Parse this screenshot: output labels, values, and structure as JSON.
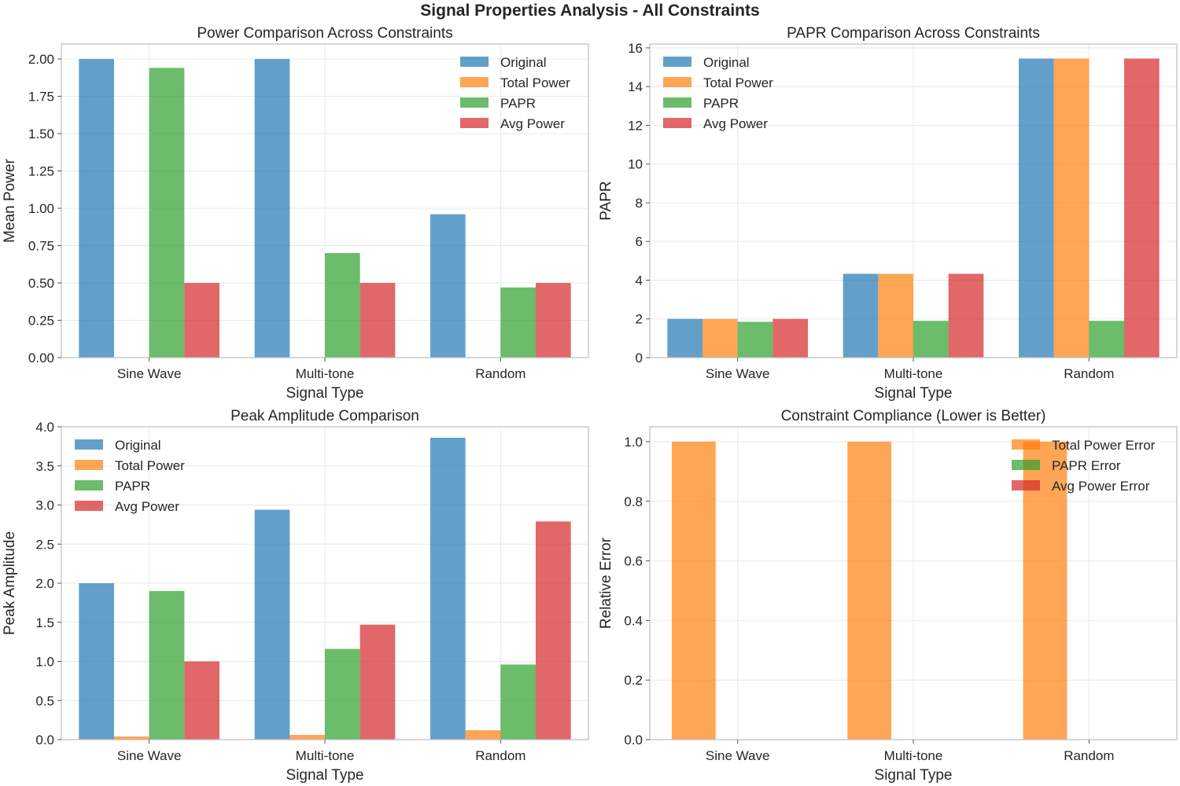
{
  "figure": {
    "suptitle": "Signal Properties Analysis - All Constraints"
  },
  "colors": {
    "Original": "#1f77b4",
    "Total Power": "#ff7f0e",
    "PAPR": "#2ca02c",
    "Avg Power": "#d62728"
  },
  "chart_data": [
    {
      "type": "bar",
      "title": "Power Comparison Across Constraints",
      "xlabel": "Signal Type",
      "ylabel": "Mean Power",
      "categories": [
        "Sine Wave",
        "Multi-tone",
        "Random"
      ],
      "ylim": [
        0,
        2.1
      ],
      "yticks": [
        "0.00",
        "0.25",
        "0.50",
        "0.75",
        "1.00",
        "1.25",
        "1.50",
        "1.75",
        "2.00"
      ],
      "legend_position": "upper right",
      "grid": true,
      "series": [
        {
          "name": "Original",
          "values": [
            2.0,
            2.0,
            0.96
          ]
        },
        {
          "name": "Total Power",
          "values": [
            0.0,
            0.0,
            0.0
          ]
        },
        {
          "name": "PAPR",
          "values": [
            1.94,
            0.7,
            0.47
          ]
        },
        {
          "name": "Avg Power",
          "values": [
            0.5,
            0.5,
            0.5
          ]
        }
      ]
    },
    {
      "type": "bar",
      "title": "PAPR Comparison Across Constraints",
      "xlabel": "Signal Type",
      "ylabel": "PAPR",
      "categories": [
        "Sine Wave",
        "Multi-tone",
        "Random"
      ],
      "ylim": [
        0,
        16.2
      ],
      "yticks": [
        "0",
        "2",
        "4",
        "6",
        "8",
        "10",
        "12",
        "14",
        "16"
      ],
      "legend_position": "upper left",
      "grid": true,
      "series": [
        {
          "name": "Original",
          "values": [
            2.0,
            4.33,
            15.45
          ]
        },
        {
          "name": "Total Power",
          "values": [
            2.0,
            4.33,
            15.45
          ]
        },
        {
          "name": "PAPR",
          "values": [
            1.85,
            1.9,
            1.9
          ]
        },
        {
          "name": "Avg Power",
          "values": [
            2.0,
            4.33,
            15.45
          ]
        }
      ]
    },
    {
      "type": "bar",
      "title": "Peak Amplitude Comparison",
      "xlabel": "Signal Type",
      "ylabel": "Peak Amplitude",
      "categories": [
        "Sine Wave",
        "Multi-tone",
        "Random"
      ],
      "ylim": [
        0,
        4.0
      ],
      "yticks": [
        "0.0",
        "0.5",
        "1.0",
        "1.5",
        "2.0",
        "2.5",
        "3.0",
        "3.5",
        "4.0"
      ],
      "legend_position": "upper left",
      "grid": true,
      "series": [
        {
          "name": "Original",
          "values": [
            2.0,
            2.94,
            3.86
          ]
        },
        {
          "name": "Total Power",
          "values": [
            0.04,
            0.06,
            0.12
          ]
        },
        {
          "name": "PAPR",
          "values": [
            1.9,
            1.16,
            0.96
          ]
        },
        {
          "name": "Avg Power",
          "values": [
            1.0,
            1.47,
            2.79
          ]
        }
      ]
    },
    {
      "type": "bar",
      "title": "Constraint Compliance (Lower is Better)",
      "xlabel": "Signal Type",
      "ylabel": "Relative Error",
      "categories": [
        "Sine Wave",
        "Multi-tone",
        "Random"
      ],
      "ylim": [
        0,
        1.05
      ],
      "yticks": [
        "0.0",
        "0.2",
        "0.4",
        "0.6",
        "0.8",
        "1.0"
      ],
      "legend_position": "upper right",
      "grid": true,
      "series": [
        {
          "name": "Total Power Error",
          "color": "#ff7f0e",
          "values": [
            1.0,
            1.0,
            1.0
          ]
        },
        {
          "name": "PAPR Error",
          "color": "#2ca02c",
          "values": [
            0.0,
            0.0,
            0.0
          ]
        },
        {
          "name": "Avg Power Error",
          "color": "#d62728",
          "values": [
            0.0,
            0.0,
            0.0
          ]
        }
      ]
    }
  ]
}
